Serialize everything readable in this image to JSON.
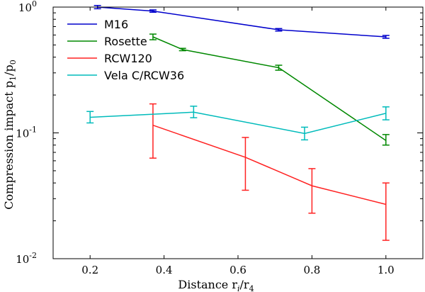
{
  "chart_data": {
    "type": "line",
    "title": "",
    "xlabel": "Distance r",
    "xlabel_sub1": "i",
    "xlabel_sep": "/r",
    "xlabel_sub2": "4",
    "ylabel": "Compression impact p",
    "ylabel_sub1": "1",
    "ylabel_sep": "/p",
    "ylabel_sub2": "0",
    "xlim": [
      0.1,
      1.1
    ],
    "ylim_log10": [
      -2,
      0
    ],
    "yscale": "log",
    "x_ticks": [
      0.2,
      0.4,
      0.6,
      0.8,
      1.0
    ],
    "x_tick_labels": [
      "0.2",
      "0.4",
      "0.6",
      "0.8",
      "1.0"
    ],
    "y_ticks": [
      {
        "mant": "10",
        "exp": "-2",
        "log10": -2
      },
      {
        "mant": "10",
        "exp": "-1",
        "log10": -1
      },
      {
        "mant": "10",
        "exp": "0",
        "log10": 0
      }
    ],
    "legend_location": "top-left",
    "series": [
      {
        "name": "M16",
        "color": "#0000cc",
        "x": [
          0.22,
          0.37,
          0.71,
          1.0
        ],
        "y": [
          1.0,
          0.93,
          0.66,
          0.58
        ],
        "err_low": [
          0.97,
          0.91,
          0.645,
          0.565
        ],
        "err_high": [
          1.03,
          0.95,
          0.675,
          0.595
        ]
      },
      {
        "name": "Rosette",
        "color": "#008800",
        "x": [
          0.37,
          0.45,
          0.71,
          1.0
        ],
        "y": [
          0.58,
          0.46,
          0.33,
          0.087
        ],
        "err_low": [
          0.55,
          0.45,
          0.315,
          0.08
        ],
        "err_high": [
          0.61,
          0.47,
          0.345,
          0.097
        ]
      },
      {
        "name": "RCW120",
        "color": "#ff2222",
        "x": [
          0.37,
          0.62,
          0.8,
          1.0
        ],
        "y": [
          0.115,
          0.064,
          0.038,
          0.027
        ],
        "err_low": [
          0.063,
          0.035,
          0.023,
          0.014
        ],
        "err_high": [
          0.17,
          0.092,
          0.052,
          0.04
        ]
      },
      {
        "name": "Vela C/RCW36",
        "color": "#00bbbb",
        "x": [
          0.2,
          0.48,
          0.78,
          1.0
        ],
        "y": [
          0.133,
          0.146,
          0.099,
          0.143
        ],
        "err_low": [
          0.12,
          0.132,
          0.088,
          0.127
        ],
        "err_high": [
          0.148,
          0.163,
          0.111,
          0.161
        ]
      }
    ]
  }
}
